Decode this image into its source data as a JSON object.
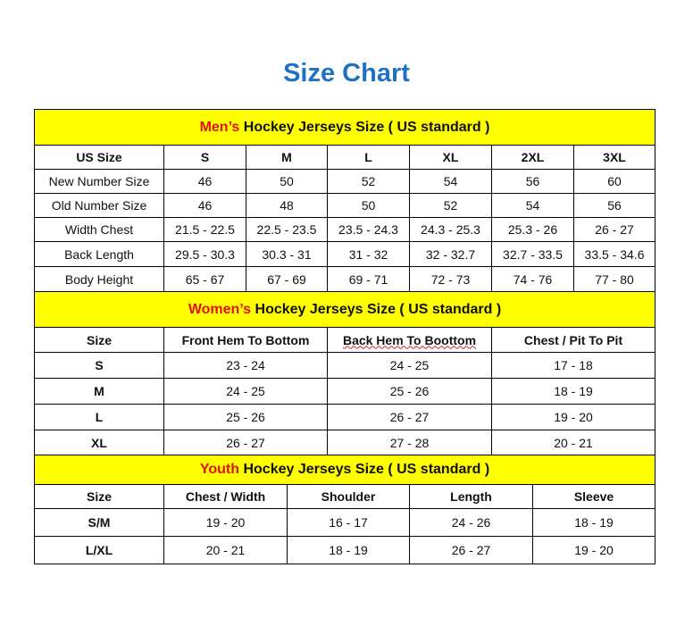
{
  "title": "Size Chart",
  "colors": {
    "title": "#1f73c0",
    "band": "#ffff00",
    "highlight": "#e01010"
  },
  "sections": [
    {
      "key": "men",
      "highlight": "Men’s",
      "heading": " Hockey Jerseys Size ( US standard )",
      "widths": [
        145,
        92,
        91,
        92,
        92,
        92,
        91
      ],
      "columns": [
        "US Size",
        "S",
        "M",
        "L",
        "XL",
        "2XL",
        "3XL"
      ],
      "rows": [
        [
          "New Number Size",
          "46",
          "50",
          "52",
          "54",
          "56",
          "60"
        ],
        [
          "Old Number Size",
          "46",
          "48",
          "50",
          "52",
          "54",
          "56"
        ],
        [
          "Width Chest",
          "21.5 - 22.5",
          "22.5 - 23.5",
          "23.5 - 24.3",
          "24.3 - 25.3",
          "25.3 - 26",
          "26 - 27"
        ],
        [
          "Back Length",
          "29.5 - 30.3",
          "30.3 - 31",
          "31 - 32",
          "32 - 32.7",
          "32.7 - 33.5",
          "33.5 - 34.6"
        ],
        [
          "Body Height",
          "65 - 67",
          "67 - 69",
          "69 - 71",
          "72 - 73",
          "74 - 76",
          "77 - 80"
        ]
      ]
    },
    {
      "key": "women",
      "highlight": "Women’s",
      "heading": " Hockey Jerseys Size ( US standard )",
      "widths": [
        145,
        183,
        184,
        183
      ],
      "columns": [
        "Size",
        "Front Hem To Bottom",
        "Back Hem To Boottom",
        "Chest / Pit To Pit"
      ],
      "rows": [
        [
          "S",
          "23 - 24",
          "24 - 25",
          "17 - 18"
        ],
        [
          "M",
          "24 - 25",
          "25 - 26",
          "18 - 19"
        ],
        [
          "L",
          "25 - 26",
          "26 - 27",
          "19 - 20"
        ],
        [
          "XL",
          "26 - 27",
          "27 - 28",
          "20 - 21"
        ]
      ]
    },
    {
      "key": "youth",
      "highlight": "Youth",
      "heading": " Hockey Jerseys Size ( US standard )",
      "widths": [
        145,
        138,
        137,
        138,
        137
      ],
      "columns": [
        "Size",
        "Chest / Width",
        "Shoulder",
        "Length",
        "Sleeve"
      ],
      "rows": [
        [
          "S/M",
          "19 - 20",
          "16 - 17",
          "24 - 26",
          "18 - 19"
        ],
        [
          "L/XL",
          "20 - 21",
          "18 - 19",
          "26 - 27",
          "19 - 20"
        ]
      ]
    }
  ]
}
